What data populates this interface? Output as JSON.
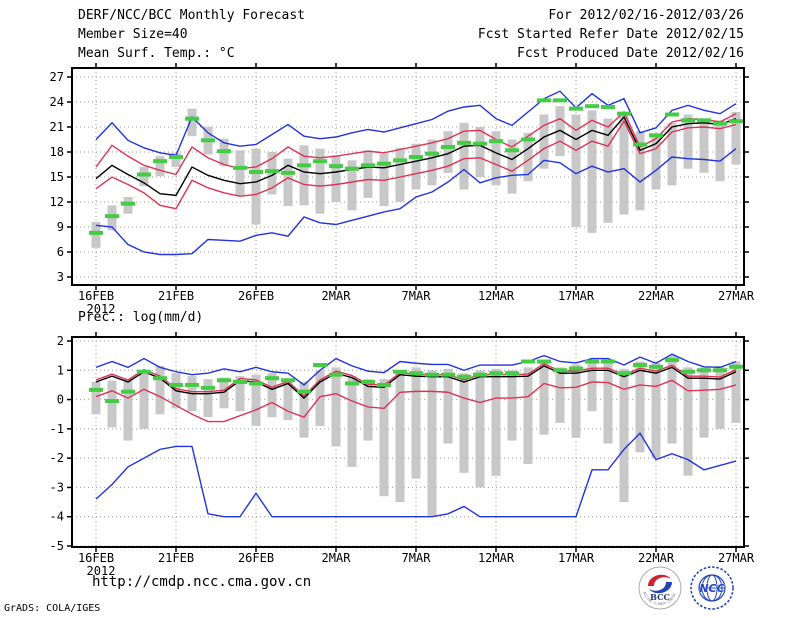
{
  "header": {
    "title": "DERF/NCC/BCC Monthly Forecast",
    "member_size": "Member Size=40",
    "variable_label": "Mean Surf. Temp.: °C",
    "for_range": "For 2012/02/16-2012/03/26",
    "fcst_started": "Fcst Started Refer Date 2012/02/15",
    "fcst_produced": "Fcst Produced Date 2012/02/16"
  },
  "footer": {
    "url": "http://cmdp.ncc.cma.gov.cn",
    "grads": "GrADS: COLA/IGES"
  },
  "logos": {
    "bcc": "BCC",
    "bcc_ring": "BEIJING CLIMATE CENTER",
    "ncc": "NCC"
  },
  "colors": {
    "line_blue": "#2233dd",
    "line_red": "#dd3355",
    "line_black": "#000000",
    "obs_green": "#44cc44",
    "bar_gray": "#c8c8c8",
    "grid": "#999999",
    "frame": "#000000",
    "logo_blue": "#2244bb",
    "logo_red": "#cc2233",
    "bg": "#ffffff"
  },
  "chart_data": [
    {
      "id": "temp",
      "type": "line",
      "title": "Mean Surf. Temp.: °C",
      "x_year_label": "2012",
      "x_ticks": [
        {
          "day": 0,
          "label": "16FEB"
        },
        {
          "day": 5,
          "label": "21FEB"
        },
        {
          "day": 10,
          "label": "26FEB"
        },
        {
          "day": 15,
          "label": "2MAR"
        },
        {
          "day": 20,
          "label": "7MAR"
        },
        {
          "day": 25,
          "label": "12MAR"
        },
        {
          "day": 30,
          "label": "17MAR"
        },
        {
          "day": 35,
          "label": "22MAR"
        },
        {
          "day": 40,
          "label": "27MAR"
        }
      ],
      "y_ticks": [
        3,
        6,
        9,
        12,
        15,
        18,
        21,
        24,
        27
      ],
      "ylim": [
        3,
        27
      ],
      "n_days": 41,
      "layout": {
        "x0": 96,
        "dx": 16,
        "yref": 277,
        "vref": 3,
        "ppu": 8.3333,
        "frame": {
          "l": 72,
          "t": 68,
          "r": 744,
          "b": 285
        }
      },
      "series": [
        {
          "name": "ensemble-max",
          "color": "#2233dd",
          "values": [
            19.5,
            21.5,
            19.4,
            18.5,
            17.9,
            17.6,
            22.2,
            20.3,
            19.1,
            18.7,
            18.9,
            20.1,
            21.3,
            19.9,
            19.6,
            19.8,
            20.3,
            20.7,
            20.4,
            20.9,
            21.4,
            21.9,
            22.9,
            23.4,
            23.6,
            22.0,
            21.2,
            22.8,
            24.4,
            25.3,
            23.3,
            25.0,
            23.6,
            24.4,
            20.3,
            20.9,
            23.0,
            23.6,
            23.0,
            22.6,
            23.8
          ]
        },
        {
          "name": "upper-spread",
          "color": "#dd3355",
          "values": [
            16.2,
            18.8,
            17.5,
            16.4,
            15.8,
            15.3,
            18.6,
            17.3,
            16.5,
            16.0,
            16.2,
            17.2,
            18.6,
            17.5,
            17.3,
            17.5,
            17.8,
            18.1,
            17.9,
            18.3,
            18.7,
            19.1,
            19.6,
            20.5,
            20.6,
            19.5,
            18.6,
            19.9,
            21.2,
            22.0,
            20.6,
            21.8,
            21.0,
            22.8,
            18.6,
            19.6,
            21.6,
            22.0,
            21.9,
            21.6,
            22.6
          ]
        },
        {
          "name": "ensemble-median",
          "color": "#000000",
          "values": [
            14.8,
            16.4,
            15.3,
            14.3,
            13.0,
            12.8,
            16.2,
            15.2,
            14.6,
            14.2,
            14.4,
            15.2,
            16.4,
            15.6,
            15.4,
            15.6,
            15.9,
            16.2,
            16.1,
            16.5,
            16.9,
            17.3,
            17.8,
            18.7,
            18.8,
            17.9,
            17.1,
            18.4,
            19.8,
            20.6,
            19.5,
            20.6,
            20.0,
            22.2,
            18.2,
            19.0,
            21.0,
            21.4,
            21.5,
            21.3,
            22.0
          ]
        },
        {
          "name": "lower-spread",
          "color": "#dd3355",
          "values": [
            13.6,
            15.0,
            14.1,
            13.1,
            11.6,
            11.2,
            14.6,
            13.7,
            13.1,
            12.7,
            12.9,
            13.7,
            14.9,
            14.1,
            13.9,
            14.1,
            14.4,
            14.7,
            14.6,
            15.0,
            15.4,
            15.8,
            16.3,
            17.2,
            17.3,
            16.5,
            15.7,
            17.0,
            18.4,
            19.3,
            18.2,
            19.3,
            18.7,
            21.7,
            17.8,
            18.4,
            20.4,
            20.9,
            21.0,
            20.8,
            21.3
          ]
        },
        {
          "name": "ensemble-min",
          "color": "#2233dd",
          "values": [
            9.2,
            9.0,
            6.9,
            6.0,
            5.7,
            5.7,
            5.8,
            7.5,
            7.4,
            7.3,
            8.0,
            8.3,
            7.9,
            10.2,
            9.5,
            9.3,
            9.8,
            10.3,
            10.8,
            11.2,
            12.6,
            13.2,
            14.4,
            15.9,
            14.3,
            14.9,
            15.2,
            15.3,
            17.0,
            16.7,
            15.4,
            16.3,
            15.6,
            16.0,
            14.4,
            15.8,
            17.4,
            17.2,
            17.1,
            16.9,
            18.4
          ]
        }
      ],
      "observation": {
        "name": "observation",
        "color": "#44cc44",
        "values": [
          8.3,
          10.3,
          11.8,
          15.3,
          16.9,
          17.4,
          22.0,
          19.4,
          18.1,
          16.1,
          15.6,
          15.7,
          15.5,
          16.4,
          16.9,
          16.3,
          16.0,
          16.4,
          16.6,
          17.0,
          17.4,
          17.8,
          18.6,
          19.1,
          19.0,
          19.3,
          18.2,
          19.5,
          24.2,
          24.2,
          23.2,
          23.5,
          23.4,
          22.6,
          18.9,
          20.0,
          22.5,
          21.8,
          21.8,
          21.4,
          21.7
        ]
      },
      "bars": {
        "name": "ensemble-range",
        "color": "#c8c8c8",
        "low": [
          6.5,
          8.6,
          10.6,
          13.9,
          15.1,
          16.2,
          19.9,
          17.7,
          16.3,
          12.8,
          9.3,
          12.9,
          11.5,
          11.6,
          10.6,
          12.0,
          11.0,
          12.5,
          11.5,
          12.0,
          13.5,
          14.0,
          15.5,
          13.5,
          15.0,
          14.0,
          13.0,
          14.5,
          16.0,
          17.5,
          9.0,
          8.3,
          9.5,
          10.5,
          11.0,
          13.5,
          14.0,
          16.0,
          15.5,
          14.5,
          16.5
        ],
        "high": [
          9.6,
          11.6,
          12.6,
          16.2,
          17.5,
          17.9,
          23.2,
          21.0,
          19.6,
          18.2,
          18.4,
          18.0,
          17.2,
          18.8,
          18.4,
          17.6,
          17.0,
          18.2,
          17.8,
          18.5,
          19.0,
          19.5,
          20.5,
          21.5,
          21.0,
          20.5,
          19.5,
          20.3,
          22.5,
          23.5,
          22.5,
          23.0,
          22.0,
          22.8,
          20.5,
          20.0,
          21.5,
          22.5,
          22.0,
          21.8,
          22.8
        ]
      }
    },
    {
      "id": "prec",
      "type": "line",
      "title": "Prec.: log(mm/d)",
      "x_year_label": "2012",
      "x_ticks": [
        {
          "day": 0,
          "label": "16FEB"
        },
        {
          "day": 5,
          "label": "21FEB"
        },
        {
          "day": 10,
          "label": "26FEB"
        },
        {
          "day": 15,
          "label": "2MAR"
        },
        {
          "day": 20,
          "label": "7MAR"
        },
        {
          "day": 25,
          "label": "12MAR"
        },
        {
          "day": 30,
          "label": "17MAR"
        },
        {
          "day": 35,
          "label": "22MAR"
        },
        {
          "day": 40,
          "label": "27MAR"
        }
      ],
      "y_ticks": [
        2,
        1,
        0,
        -1,
        -2,
        -3,
        -4,
        -5
      ],
      "ylim": [
        -5,
        2
      ],
      "n_days": 41,
      "layout": {
        "x0": 96,
        "dx": 16,
        "yref": 546,
        "vref": -5,
        "ppu": 29.286,
        "frame": {
          "l": 72,
          "t": 337,
          "r": 744,
          "b": 547
        }
      },
      "series": [
        {
          "name": "ensemble-max",
          "color": "#2233dd",
          "values": [
            1.1,
            1.3,
            1.1,
            1.4,
            1.1,
            0.95,
            0.85,
            0.9,
            1.05,
            0.95,
            1.1,
            0.95,
            0.9,
            0.5,
            1.0,
            1.4,
            1.15,
            0.97,
            0.92,
            1.3,
            1.24,
            1.2,
            1.2,
            1.0,
            1.18,
            1.18,
            1.18,
            1.3,
            1.5,
            1.3,
            1.25,
            1.4,
            1.4,
            1.18,
            1.45,
            1.24,
            1.55,
            1.3,
            1.12,
            1.1,
            1.3
          ]
        },
        {
          "name": "upper-spread",
          "color": "#dd3355",
          "values": [
            0.67,
            0.87,
            0.67,
            1.02,
            0.8,
            0.37,
            0.27,
            0.27,
            0.32,
            0.72,
            0.67,
            0.42,
            0.62,
            0.12,
            0.67,
            0.97,
            0.82,
            0.52,
            0.49,
            0.92,
            0.87,
            0.85,
            0.85,
            0.67,
            0.85,
            0.85,
            0.85,
            0.87,
            1.22,
            0.97,
            0.97,
            1.07,
            1.07,
            0.85,
            1.07,
            0.97,
            1.17,
            0.8,
            0.8,
            0.77,
            1.02
          ]
        },
        {
          "name": "ensemble-median",
          "color": "#000000",
          "values": [
            0.6,
            0.8,
            0.6,
            0.95,
            0.73,
            0.3,
            0.2,
            0.2,
            0.25,
            0.65,
            0.6,
            0.35,
            0.55,
            0.05,
            0.6,
            0.9,
            0.75,
            0.45,
            0.42,
            0.85,
            0.8,
            0.78,
            0.78,
            0.6,
            0.78,
            0.78,
            0.78,
            0.8,
            1.15,
            0.9,
            0.9,
            1.0,
            1.0,
            0.78,
            1.0,
            0.9,
            1.1,
            0.73,
            0.73,
            0.7,
            0.95
          ]
        },
        {
          "name": "lower-spread",
          "color": "#dd3355",
          "values": [
            0.1,
            0.3,
            0.05,
            0.35,
            0.1,
            -0.2,
            -0.5,
            -0.75,
            -0.75,
            -0.55,
            -0.35,
            -0.1,
            -0.4,
            -0.6,
            0.1,
            0.2,
            -0.05,
            -0.25,
            -0.3,
            0.25,
            0.28,
            0.28,
            0.25,
            0.05,
            -0.1,
            0.05,
            0.05,
            0.1,
            0.55,
            0.4,
            0.42,
            0.6,
            0.58,
            0.35,
            0.5,
            0.45,
            0.66,
            0.3,
            0.32,
            0.35,
            0.5
          ]
        },
        {
          "name": "ensemble-min",
          "color": "#2233dd",
          "values": [
            -3.4,
            -2.9,
            -2.3,
            -2.0,
            -1.7,
            -1.6,
            -1.6,
            -3.9,
            -4.0,
            -4.0,
            -3.2,
            -4.0,
            -4.0,
            -4.0,
            -4.0,
            -4.0,
            -4.0,
            -4.0,
            -4.0,
            -4.0,
            -4.0,
            -4.0,
            -3.9,
            -3.65,
            -4.0,
            -4.0,
            -4.0,
            -4.0,
            -4.0,
            -4.0,
            -4.0,
            -2.4,
            -2.4,
            -1.7,
            -1.15,
            -2.05,
            -1.85,
            -2.05,
            -2.4,
            -2.25,
            -2.1
          ]
        }
      ],
      "observation": {
        "name": "observation",
        "color": "#44cc44",
        "values": [
          0.33,
          -0.05,
          0.27,
          0.95,
          0.73,
          0.5,
          0.5,
          0.4,
          0.66,
          0.6,
          0.55,
          0.73,
          0.66,
          0.27,
          1.18,
          0.85,
          0.55,
          0.6,
          0.5,
          0.95,
          0.9,
          0.85,
          0.85,
          0.78,
          0.85,
          0.9,
          0.9,
          1.3,
          1.3,
          1.0,
          1.06,
          1.3,
          1.3,
          0.9,
          1.18,
          1.12,
          1.35,
          0.95,
          1.0,
          1.0,
          1.12
        ]
      },
      "bars": {
        "name": "ensemble-range",
        "color": "#c8c8c8",
        "low": [
          -0.5,
          -0.95,
          -1.4,
          -1.0,
          -0.5,
          -0.3,
          -0.4,
          -0.6,
          -0.3,
          -0.4,
          -0.9,
          -0.6,
          -0.7,
          -1.3,
          -0.9,
          -1.6,
          -2.3,
          -1.4,
          -3.3,
          -3.5,
          -2.7,
          -4.0,
          -1.5,
          -2.5,
          -3.0,
          -2.6,
          -1.4,
          -2.2,
          -1.2,
          -0.8,
          -1.3,
          -0.4,
          -1.5,
          -3.5,
          -1.8,
          -2.0,
          -1.5,
          -2.6,
          -1.3,
          -1.0,
          -0.8
        ],
        "high": [
          0.6,
          0.65,
          0.7,
          1.0,
          1.15,
          0.9,
          0.8,
          0.7,
          0.75,
          0.8,
          0.85,
          0.9,
          0.7,
          0.6,
          1.0,
          1.1,
          0.8,
          0.7,
          0.7,
          1.0,
          1.1,
          1.0,
          1.05,
          0.9,
          1.0,
          1.05,
          1.0,
          1.1,
          1.35,
          1.1,
          1.2,
          1.35,
          1.35,
          1.05,
          1.3,
          1.25,
          1.5,
          1.1,
          1.1,
          1.15,
          1.3
        ]
      }
    }
  ]
}
